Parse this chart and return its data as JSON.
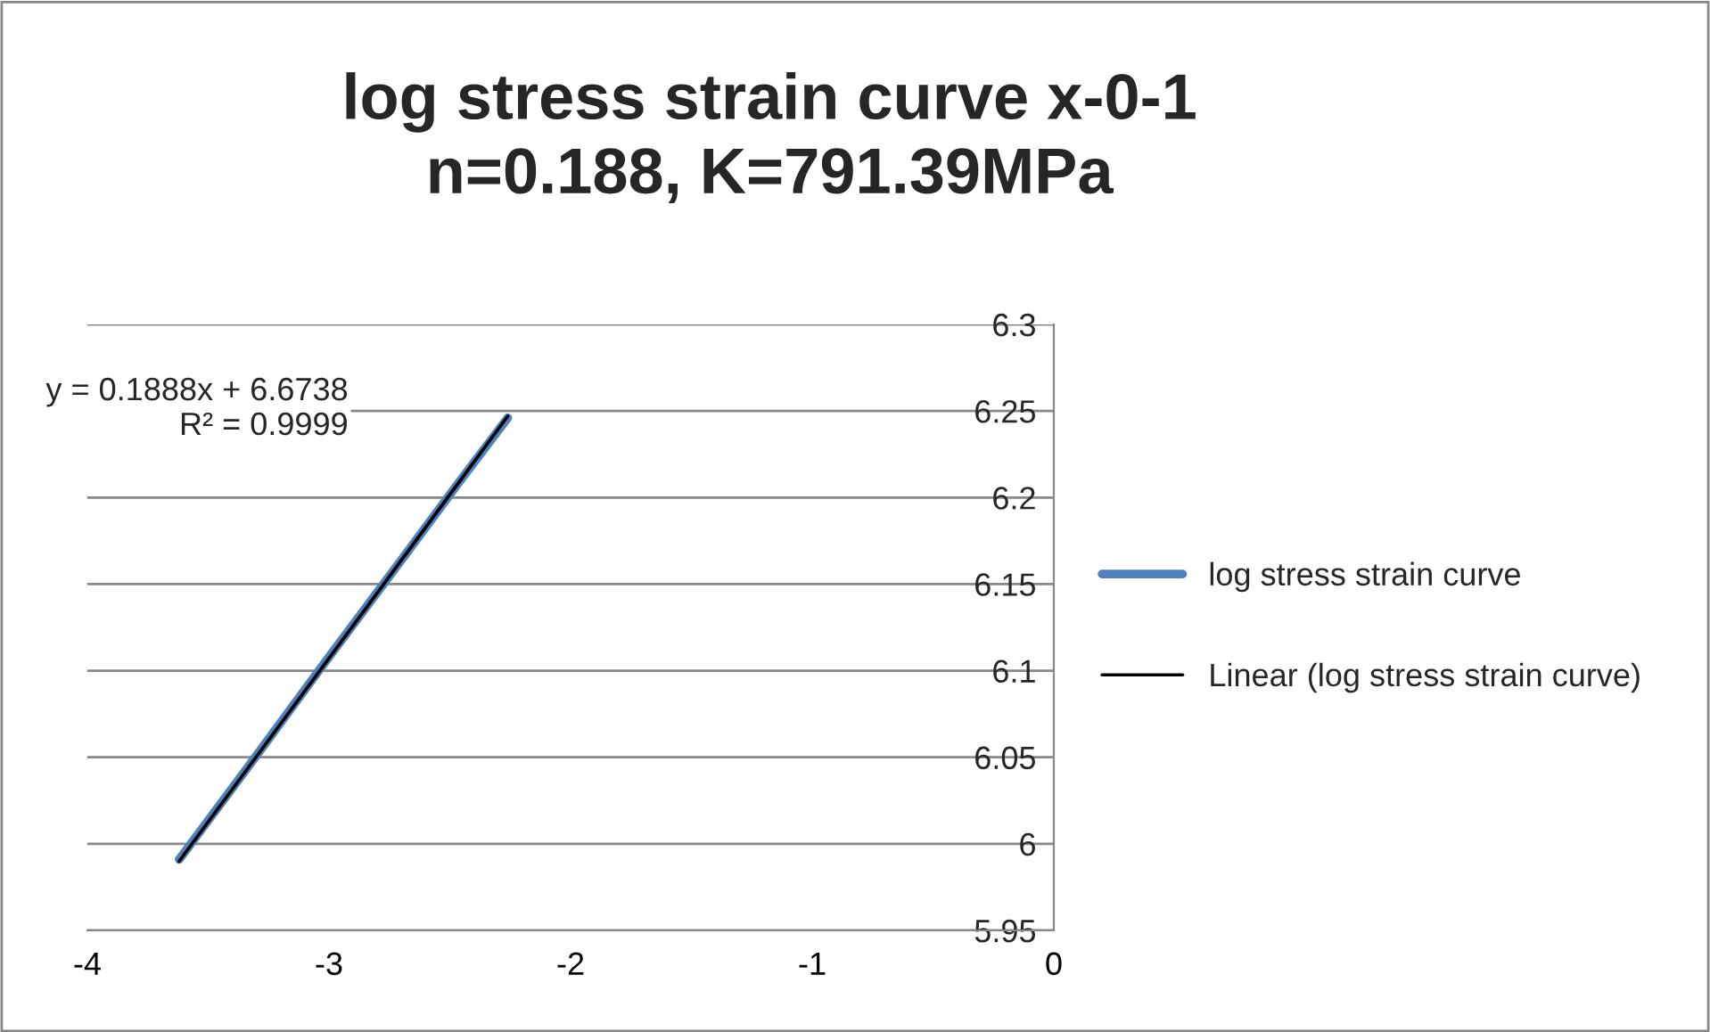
{
  "chart_data": {
    "type": "line",
    "title": "log stress strain curve x-0-1\nn=0.188, K=791.39MPa",
    "series": [
      {
        "name": "log stress strain curve",
        "color": "#4f81bd",
        "x": [
          -3.62,
          -3.3,
          -3.0,
          -2.7,
          -2.45,
          -2.26
        ],
        "values": [
          5.991,
          6.051,
          6.108,
          6.164,
          6.211,
          6.246
        ]
      },
      {
        "name": "Linear (log stress strain curve)",
        "color": "#000000",
        "x": [
          -3.62,
          -2.26
        ],
        "values": [
          5.99,
          6.247
        ]
      }
    ],
    "annotations": [
      "y = 0.1888x + 6.6738\nR² = 0.9999"
    ],
    "xlim": [
      -4,
      0
    ],
    "xticks": [
      -4,
      -3,
      -2,
      -1,
      0
    ],
    "ylim": [
      5.95,
      6.3
    ],
    "yticks": [
      5.95,
      6,
      6.05,
      6.1,
      6.15,
      6.2,
      6.25,
      6.3
    ],
    "grid": "y",
    "legend": "right",
    "marker": "none",
    "line_style": "solid"
  }
}
